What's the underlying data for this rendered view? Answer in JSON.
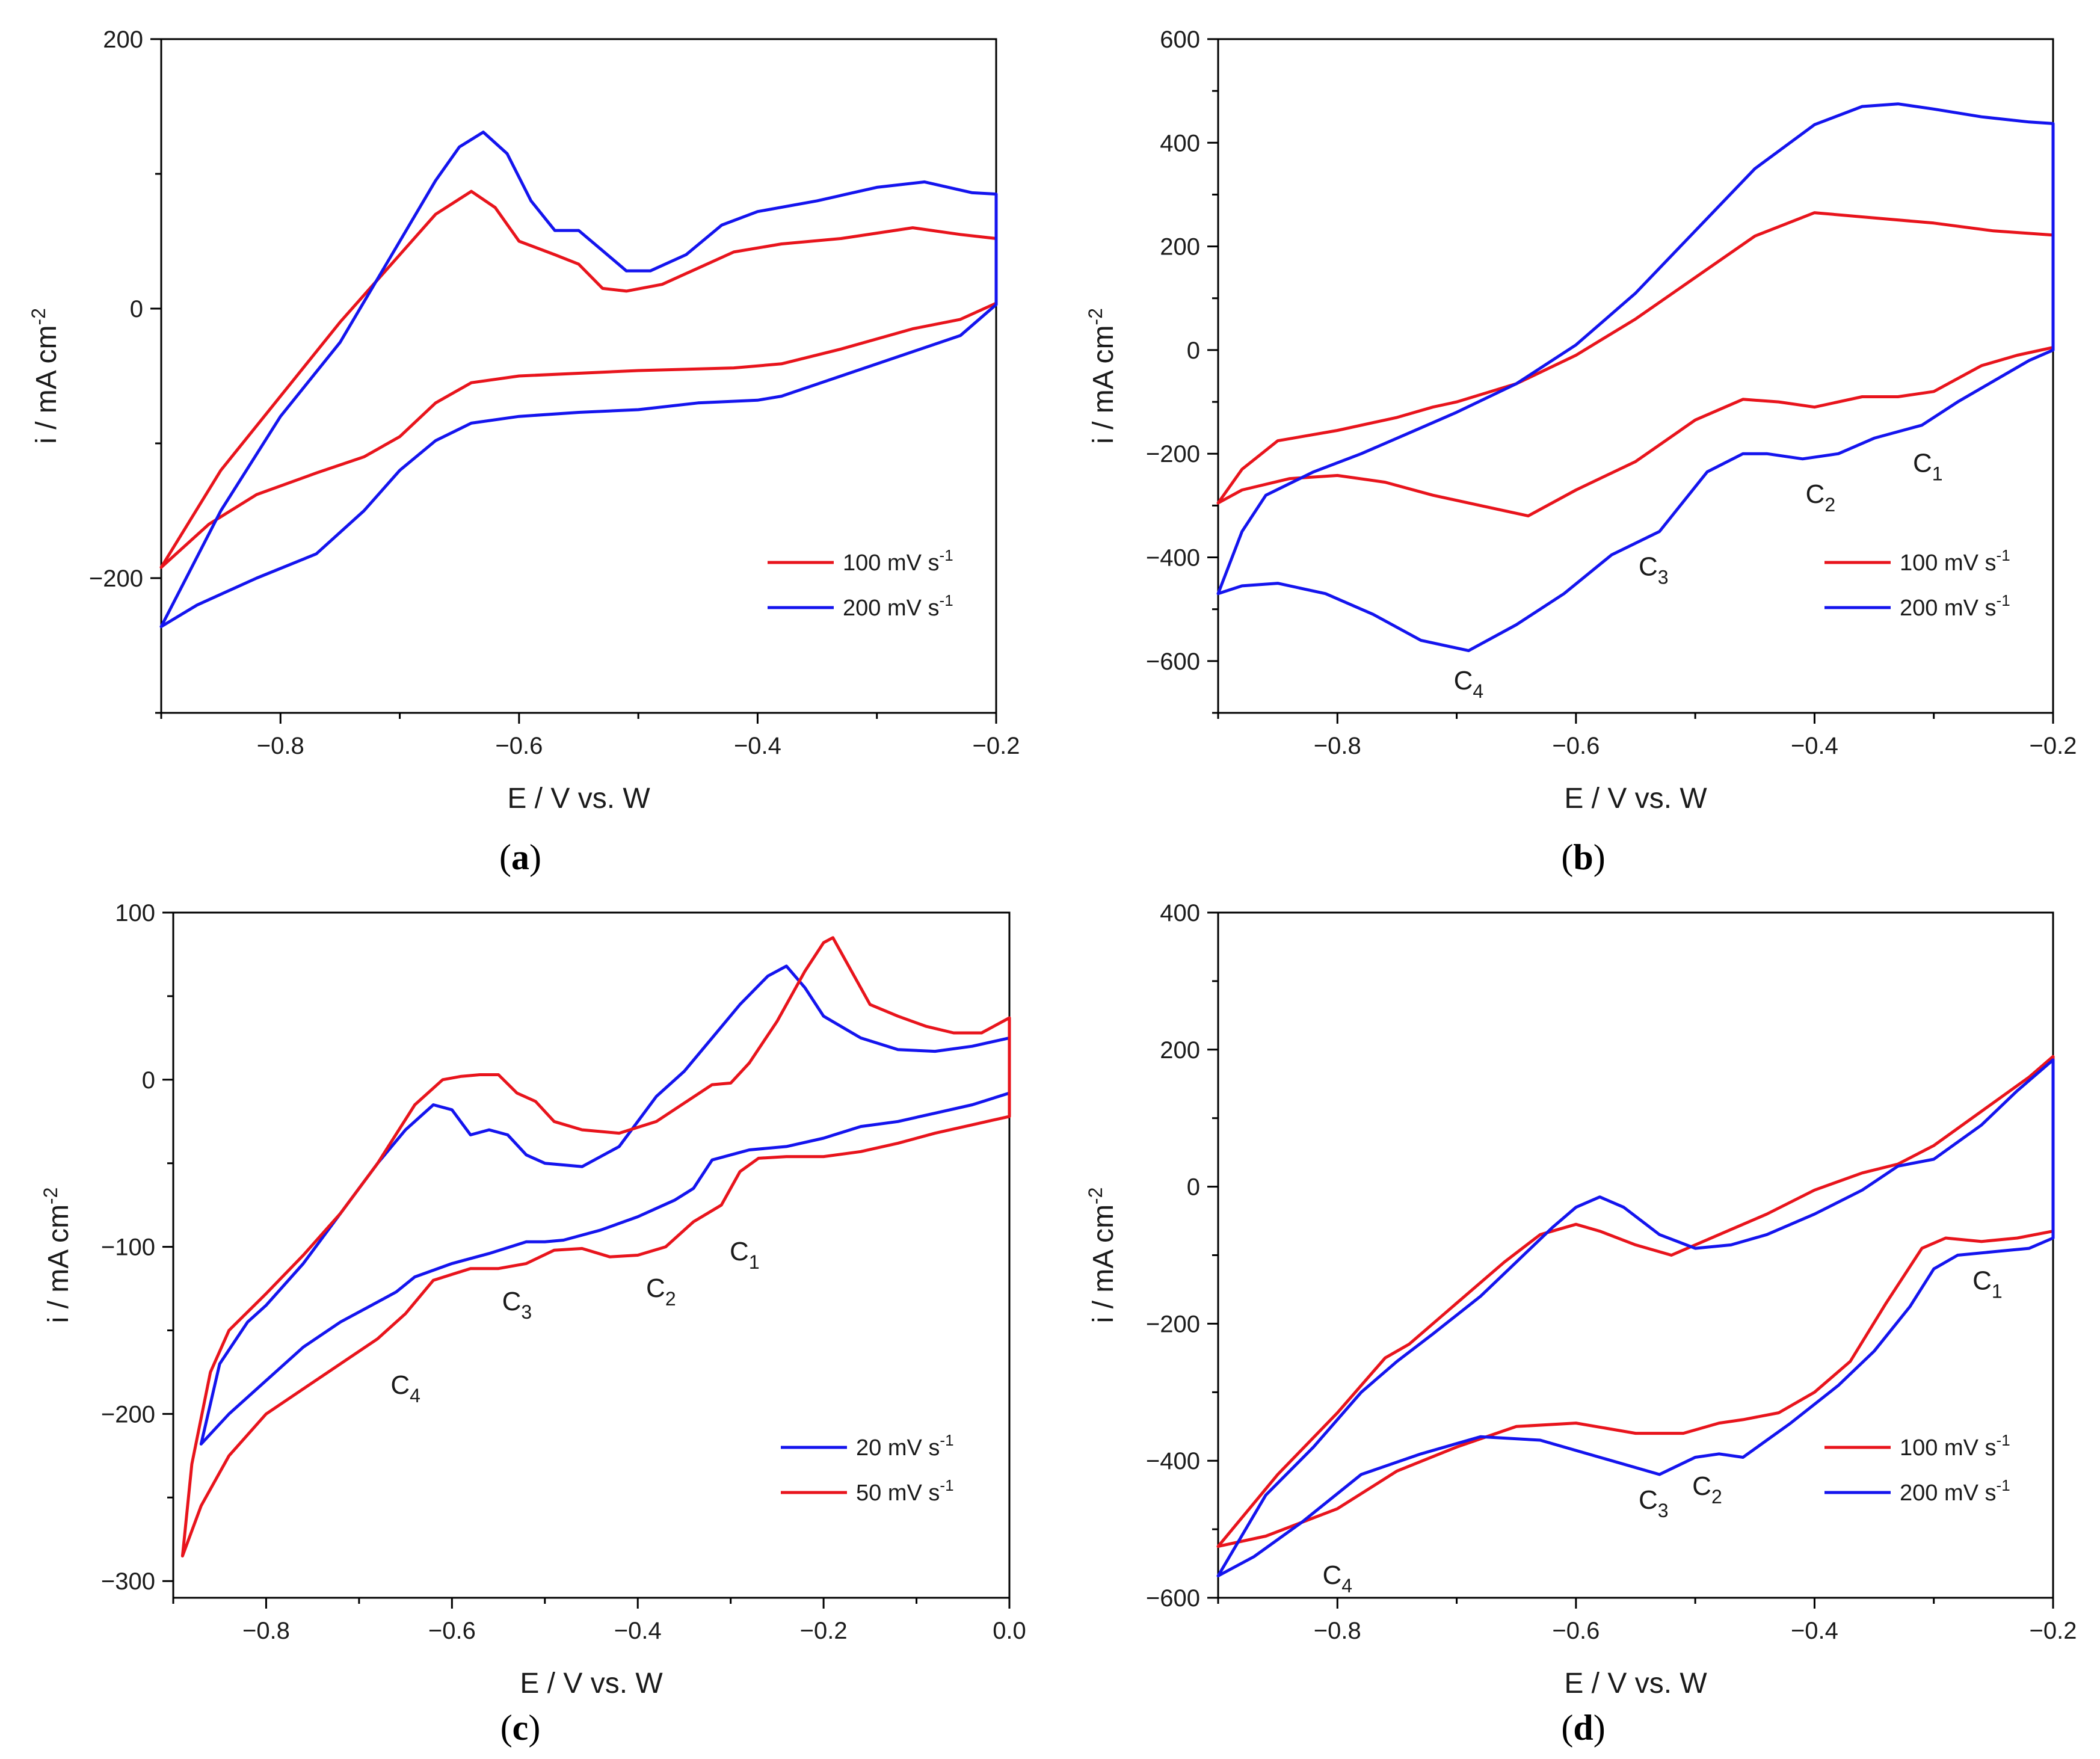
{
  "chart_data": [
    {
      "panel": "(a)",
      "type": "line",
      "xlabel": "E / V vs. W",
      "ylabel": "i / mA cm-2",
      "xlim": [
        -0.9,
        -0.2
      ],
      "ylim": [
        -300,
        200
      ],
      "xticks": [
        -0.8,
        -0.6,
        -0.4,
        -0.2
      ],
      "yticks": [
        -200,
        0,
        200
      ],
      "legend_position": "bottom-right",
      "series": [
        {
          "name": "100 mV s-1",
          "color": "#e8141c",
          "x": [
            -0.9,
            -0.85,
            -0.8,
            -0.75,
            -0.7,
            -0.67,
            -0.64,
            -0.62,
            -0.6,
            -0.57,
            -0.55,
            -0.53,
            -0.51,
            -0.48,
            -0.45,
            -0.42,
            -0.38,
            -0.33,
            -0.27,
            -0.23,
            -0.2,
            -0.2,
            -0.23,
            -0.27,
            -0.33,
            -0.38,
            -0.42,
            -0.5,
            -0.6,
            -0.64,
            -0.67,
            -0.7,
            -0.73,
            -0.77,
            -0.82,
            -0.86,
            -0.9
          ],
          "y": [
            -192,
            -120,
            -65,
            -10,
            40,
            70,
            87,
            75,
            50,
            40,
            33,
            15,
            13,
            18,
            30,
            42,
            48,
            52,
            60,
            55,
            52,
            4,
            -8,
            -15,
            -30,
            -41,
            -44,
            -46,
            -50,
            -55,
            -70,
            -95,
            -110,
            -122,
            -138,
            -160,
            -192
          ]
        },
        {
          "name": "200 mV s-1",
          "color": "#1414ee",
          "x": [
            -0.9,
            -0.85,
            -0.8,
            -0.75,
            -0.7,
            -0.67,
            -0.65,
            -0.63,
            -0.61,
            -0.59,
            -0.57,
            -0.55,
            -0.53,
            -0.51,
            -0.49,
            -0.46,
            -0.43,
            -0.4,
            -0.35,
            -0.3,
            -0.26,
            -0.22,
            -0.2,
            -0.2,
            -0.23,
            -0.28,
            -0.33,
            -0.38,
            -0.4,
            -0.45,
            -0.5,
            -0.55,
            -0.6,
            -0.64,
            -0.67,
            -0.7,
            -0.73,
            -0.77,
            -0.82,
            -0.87,
            -0.9
          ],
          "y": [
            -236,
            -150,
            -80,
            -25,
            50,
            95,
            120,
            131,
            115,
            80,
            58,
            58,
            43,
            28,
            28,
            40,
            62,
            72,
            80,
            90,
            94,
            86,
            85,
            3,
            -20,
            -35,
            -50,
            -65,
            -68,
            -70,
            -75,
            -77,
            -80,
            -85,
            -98,
            -120,
            -150,
            -182,
            -200,
            -220,
            -236
          ]
        }
      ]
    },
    {
      "panel": "(b)",
      "type": "line",
      "xlabel": "E / V vs. W",
      "ylabel": "i / mA cm-2",
      "xlim": [
        -0.9,
        -0.2
      ],
      "ylim": [
        -700,
        600
      ],
      "xticks": [
        -0.8,
        -0.6,
        -0.4,
        -0.2
      ],
      "yticks": [
        -600,
        -400,
        -200,
        0,
        200,
        400,
        600
      ],
      "legend_position": "bottom-right",
      "annotations": [
        {
          "text": "C",
          "sub": "1",
          "x": -0.305,
          "y": -235
        },
        {
          "text": "C",
          "sub": "2",
          "x": -0.395,
          "y": -295
        },
        {
          "text": "C",
          "sub": "3",
          "x": -0.535,
          "y": -435
        },
        {
          "text": "C",
          "sub": "4",
          "x": -0.69,
          "y": -655
        }
      ],
      "series": [
        {
          "name": "100 mV s-1",
          "color": "#e8141c",
          "x": [
            -0.9,
            -0.88,
            -0.85,
            -0.8,
            -0.75,
            -0.72,
            -0.7,
            -0.65,
            -0.6,
            -0.55,
            -0.5,
            -0.45,
            -0.4,
            -0.35,
            -0.3,
            -0.25,
            -0.2,
            -0.2,
            -0.23,
            -0.26,
            -0.3,
            -0.33,
            -0.36,
            -0.4,
            -0.43,
            -0.46,
            -0.5,
            -0.55,
            -0.6,
            -0.64,
            -0.68,
            -0.72,
            -0.76,
            -0.8,
            -0.84,
            -0.88,
            -0.9
          ],
          "y": [
            -295,
            -230,
            -175,
            -155,
            -130,
            -110,
            -100,
            -65,
            -10,
            60,
            140,
            220,
            265,
            255,
            245,
            230,
            222,
            5,
            -10,
            -30,
            -80,
            -90,
            -90,
            -110,
            -100,
            -95,
            -135,
            -215,
            -270,
            -320,
            -300,
            -280,
            -255,
            -242,
            -248,
            -270,
            -295
          ]
        },
        {
          "name": "200 mV s-1",
          "color": "#1414ee",
          "x": [
            -0.9,
            -0.88,
            -0.86,
            -0.82,
            -0.78,
            -0.74,
            -0.7,
            -0.65,
            -0.6,
            -0.55,
            -0.5,
            -0.45,
            -0.4,
            -0.36,
            -0.33,
            -0.3,
            -0.26,
            -0.22,
            -0.2,
            -0.2,
            -0.22,
            -0.25,
            -0.28,
            -0.31,
            -0.35,
            -0.38,
            -0.41,
            -0.44,
            -0.46,
            -0.49,
            -0.53,
            -0.57,
            -0.61,
            -0.65,
            -0.69,
            -0.73,
            -0.77,
            -0.81,
            -0.85,
            -0.88,
            -0.9
          ],
          "y": [
            -470,
            -350,
            -280,
            -235,
            -200,
            -160,
            -120,
            -65,
            10,
            110,
            230,
            350,
            435,
            470,
            475,
            465,
            450,
            440,
            437,
            0,
            -20,
            -60,
            -100,
            -145,
            -170,
            -200,
            -210,
            -200,
            -200,
            -235,
            -350,
            -395,
            -470,
            -530,
            -580,
            -560,
            -510,
            -470,
            -450,
            -455,
            -470
          ]
        }
      ]
    },
    {
      "panel": "(c)",
      "type": "line",
      "xlabel": "E / V vs. W",
      "ylabel": "i / mA cm-2",
      "xlim": [
        -0.9,
        0.0
      ],
      "ylim": [
        -310,
        100
      ],
      "xticks": [
        -0.8,
        -0.6,
        -0.4,
        -0.2,
        0.0
      ],
      "yticks": [
        -300,
        -200,
        -100,
        0,
        100
      ],
      "legend_position": "bottom-right",
      "annotations": [
        {
          "text": "C",
          "sub": "1",
          "x": -0.285,
          "y": -108
        },
        {
          "text": "C",
          "sub": "2",
          "x": -0.375,
          "y": -130
        },
        {
          "text": "C",
          "sub": "3",
          "x": -0.53,
          "y": -138
        },
        {
          "text": "C",
          "sub": "4",
          "x": -0.65,
          "y": -188
        }
      ],
      "series": [
        {
          "name": "20 mV s-1",
          "color": "#1414ee",
          "x": [
            -0.87,
            -0.85,
            -0.82,
            -0.8,
            -0.76,
            -0.72,
            -0.68,
            -0.65,
            -0.62,
            -0.6,
            -0.58,
            -0.56,
            -0.54,
            -0.52,
            -0.5,
            -0.46,
            -0.42,
            -0.38,
            -0.35,
            -0.32,
            -0.29,
            -0.26,
            -0.24,
            -0.22,
            -0.2,
            -0.16,
            -0.12,
            -0.08,
            -0.04,
            0.0,
            0.0,
            -0.04,
            -0.08,
            -0.12,
            -0.16,
            -0.2,
            -0.24,
            -0.28,
            -0.3,
            -0.32,
            -0.34,
            -0.36,
            -0.38,
            -0.4,
            -0.44,
            -0.48,
            -0.5,
            -0.52,
            -0.56,
            -0.6,
            -0.64,
            -0.66,
            -0.68,
            -0.72,
            -0.76,
            -0.8,
            -0.84,
            -0.87
          ],
          "y": [
            -218,
            -170,
            -145,
            -135,
            -110,
            -80,
            -50,
            -30,
            -15,
            -18,
            -33,
            -30,
            -33,
            -45,
            -50,
            -52,
            -40,
            -10,
            5,
            25,
            45,
            62,
            68,
            55,
            38,
            25,
            18,
            17,
            20,
            25,
            -8,
            -15,
            -20,
            -25,
            -28,
            -35,
            -40,
            -42,
            -45,
            -48,
            -65,
            -72,
            -77,
            -82,
            -90,
            -96,
            -97,
            -97,
            -104,
            -110,
            -118,
            -127,
            -133,
            -145,
            -160,
            -180,
            -200,
            -218
          ]
        },
        {
          "name": "50 mV s-1",
          "color": "#e8141c",
          "x": [
            -0.89,
            -0.88,
            -0.86,
            -0.84,
            -0.8,
            -0.76,
            -0.72,
            -0.68,
            -0.64,
            -0.61,
            -0.59,
            -0.57,
            -0.55,
            -0.53,
            -0.51,
            -0.49,
            -0.46,
            -0.42,
            -0.38,
            -0.35,
            -0.32,
            -0.3,
            -0.28,
            -0.25,
            -0.22,
            -0.2,
            -0.19,
            -0.17,
            -0.15,
            -0.12,
            -0.09,
            -0.06,
            -0.03,
            0.0,
            0.0,
            -0.04,
            -0.08,
            -0.12,
            -0.16,
            -0.2,
            -0.24,
            -0.27,
            -0.29,
            -0.31,
            -0.34,
            -0.37,
            -0.4,
            -0.43,
            -0.46,
            -0.49,
            -0.52,
            -0.55,
            -0.58,
            -0.62,
            -0.65,
            -0.68,
            -0.72,
            -0.76,
            -0.8,
            -0.84,
            -0.87,
            -0.89
          ],
          "y": [
            -285,
            -230,
            -175,
            -150,
            -128,
            -105,
            -80,
            -50,
            -15,
            0,
            2,
            3,
            3,
            -8,
            -13,
            -25,
            -30,
            -32,
            -25,
            -14,
            -3,
            -2,
            10,
            35,
            65,
            82,
            85,
            65,
            45,
            38,
            32,
            28,
            28,
            37,
            -22,
            -27,
            -32,
            -38,
            -43,
            -46,
            -46,
            -47,
            -55,
            -75,
            -85,
            -100,
            -105,
            -106,
            -101,
            -102,
            -110,
            -113,
            -113,
            -120,
            -140,
            -155,
            -170,
            -185,
            -200,
            -225,
            -255,
            -285
          ]
        }
      ]
    },
    {
      "panel": "(d)",
      "type": "line",
      "xlabel": "E / V vs. W",
      "ylabel": "i / mA cm-2",
      "xlim": [
        -0.9,
        -0.2
      ],
      "ylim": [
        -600,
        400
      ],
      "xticks": [
        -0.8,
        -0.6,
        -0.4,
        -0.2
      ],
      "yticks": [
        -600,
        -400,
        -200,
        0,
        200,
        400
      ],
      "legend_position": "bottom-right",
      "annotations": [
        {
          "text": "C",
          "sub": "1",
          "x": -0.255,
          "y": -150
        },
        {
          "text": "C",
          "sub": "2",
          "x": -0.49,
          "y": -450
        },
        {
          "text": "C",
          "sub": "3",
          "x": -0.535,
          "y": -470
        },
        {
          "text": "C",
          "sub": "4",
          "x": -0.8,
          "y": -580
        }
      ],
      "series": [
        {
          "name": "100 mV s-1",
          "color": "#e8141c",
          "x": [
            -0.9,
            -0.85,
            -0.8,
            -0.76,
            -0.74,
            -0.7,
            -0.66,
            -0.63,
            -0.6,
            -0.58,
            -0.55,
            -0.52,
            -0.48,
            -0.44,
            -0.4,
            -0.36,
            -0.33,
            -0.3,
            -0.26,
            -0.22,
            -0.2,
            -0.2,
            -0.23,
            -0.26,
            -0.29,
            -0.31,
            -0.34,
            -0.37,
            -0.4,
            -0.43,
            -0.46,
            -0.48,
            -0.51,
            -0.55,
            -0.6,
            -0.65,
            -0.7,
            -0.75,
            -0.8,
            -0.86,
            -0.9
          ],
          "y": [
            -525,
            -420,
            -330,
            -250,
            -230,
            -170,
            -110,
            -70,
            -55,
            -65,
            -85,
            -100,
            -70,
            -40,
            -5,
            20,
            33,
            60,
            110,
            160,
            190,
            -65,
            -75,
            -80,
            -75,
            -90,
            -170,
            -255,
            -300,
            -330,
            -340,
            -345,
            -360,
            -360,
            -345,
            -350,
            -380,
            -415,
            -470,
            -510,
            -525
          ]
        },
        {
          "name": "200 mV s-1",
          "color": "#1414ee",
          "x": [
            -0.9,
            -0.86,
            -0.82,
            -0.78,
            -0.75,
            -0.72,
            -0.68,
            -0.65,
            -0.62,
            -0.6,
            -0.58,
            -0.56,
            -0.53,
            -0.5,
            -0.47,
            -0.44,
            -0.4,
            -0.36,
            -0.33,
            -0.3,
            -0.26,
            -0.23,
            -0.2,
            -0.2,
            -0.22,
            -0.25,
            -0.28,
            -0.3,
            -0.32,
            -0.35,
            -0.38,
            -0.42,
            -0.46,
            -0.48,
            -0.5,
            -0.53,
            -0.58,
            -0.63,
            -0.68,
            -0.73,
            -0.78,
            -0.83,
            -0.87,
            -0.9
          ],
          "y": [
            -568,
            -450,
            -380,
            -300,
            -255,
            -215,
            -160,
            -110,
            -60,
            -30,
            -15,
            -30,
            -70,
            -90,
            -85,
            -70,
            -40,
            -5,
            30,
            40,
            90,
            140,
            185,
            -75,
            -90,
            -95,
            -100,
            -120,
            -175,
            -240,
            -290,
            -345,
            -395,
            -390,
            -395,
            -420,
            -395,
            -370,
            -365,
            -390,
            -420,
            -490,
            -540,
            -568
          ]
        }
      ]
    }
  ],
  "captions": [
    {
      "open": "(",
      "letter": "a",
      "close": ")"
    },
    {
      "open": "(",
      "letter": "b",
      "close": ")"
    },
    {
      "open": "(",
      "letter": "c",
      "close": ")"
    },
    {
      "open": "(",
      "letter": "d",
      "close": ")"
    }
  ],
  "legend_units": {
    "a": [
      {
        "value": "100",
        "unit": "mV s",
        "exp": "-1"
      },
      {
        "value": "200",
        "unit": "mV s",
        "exp": "-1"
      }
    ],
    "b": [
      {
        "value": "100",
        "unit": "mV s",
        "exp": "-1"
      },
      {
        "value": "200",
        "unit": "mV s",
        "exp": "-1"
      }
    ],
    "c": [
      {
        "value": "20",
        "unit": "mV s",
        "exp": "-1"
      },
      {
        "value": "50",
        "unit": "mV s",
        "exp": "-1"
      }
    ],
    "d": [
      {
        "value": "100",
        "unit": "mV s",
        "exp": "-1"
      },
      {
        "value": "200",
        "unit": "mV s",
        "exp": "-1"
      }
    ]
  },
  "axis_titles": {
    "x": "E / V vs. W",
    "y_main": "i / mA cm",
    "y_exp": "-2"
  }
}
